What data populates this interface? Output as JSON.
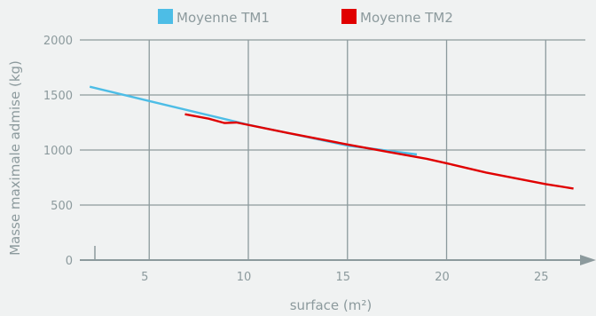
{
  "chart_data": {
    "type": "line",
    "title": "",
    "xlabel": "surface (m²)",
    "ylabel": "Masse maximale admise (kg)",
    "xlim": [
      1.5,
      27
    ],
    "ylim": [
      0,
      2000
    ],
    "x_ticks": [
      "5",
      "10",
      "15",
      "20",
      "25"
    ],
    "y_ticks": [
      "0",
      "500",
      "1000",
      "1500",
      "2000"
    ],
    "grid": true,
    "legend_position": "top-center",
    "series": [
      {
        "name": "Moyenne TM1",
        "color": "#4dbde6",
        "points": [
          [
            2,
            1575
          ],
          [
            5,
            1445
          ],
          [
            10,
            1230
          ],
          [
            15,
            1040
          ],
          [
            18.5,
            960
          ]
        ]
      },
      {
        "name": "Moyenne TM2",
        "color": "#e00000",
        "points": [
          [
            6.8,
            1325
          ],
          [
            8,
            1285
          ],
          [
            8.8,
            1245
          ],
          [
            9.4,
            1250
          ],
          [
            12,
            1155
          ],
          [
            15,
            1050
          ],
          [
            17,
            985
          ],
          [
            19,
            920
          ],
          [
            20,
            880
          ],
          [
            22,
            795
          ],
          [
            25,
            690
          ],
          [
            26.4,
            650
          ]
        ]
      }
    ]
  }
}
